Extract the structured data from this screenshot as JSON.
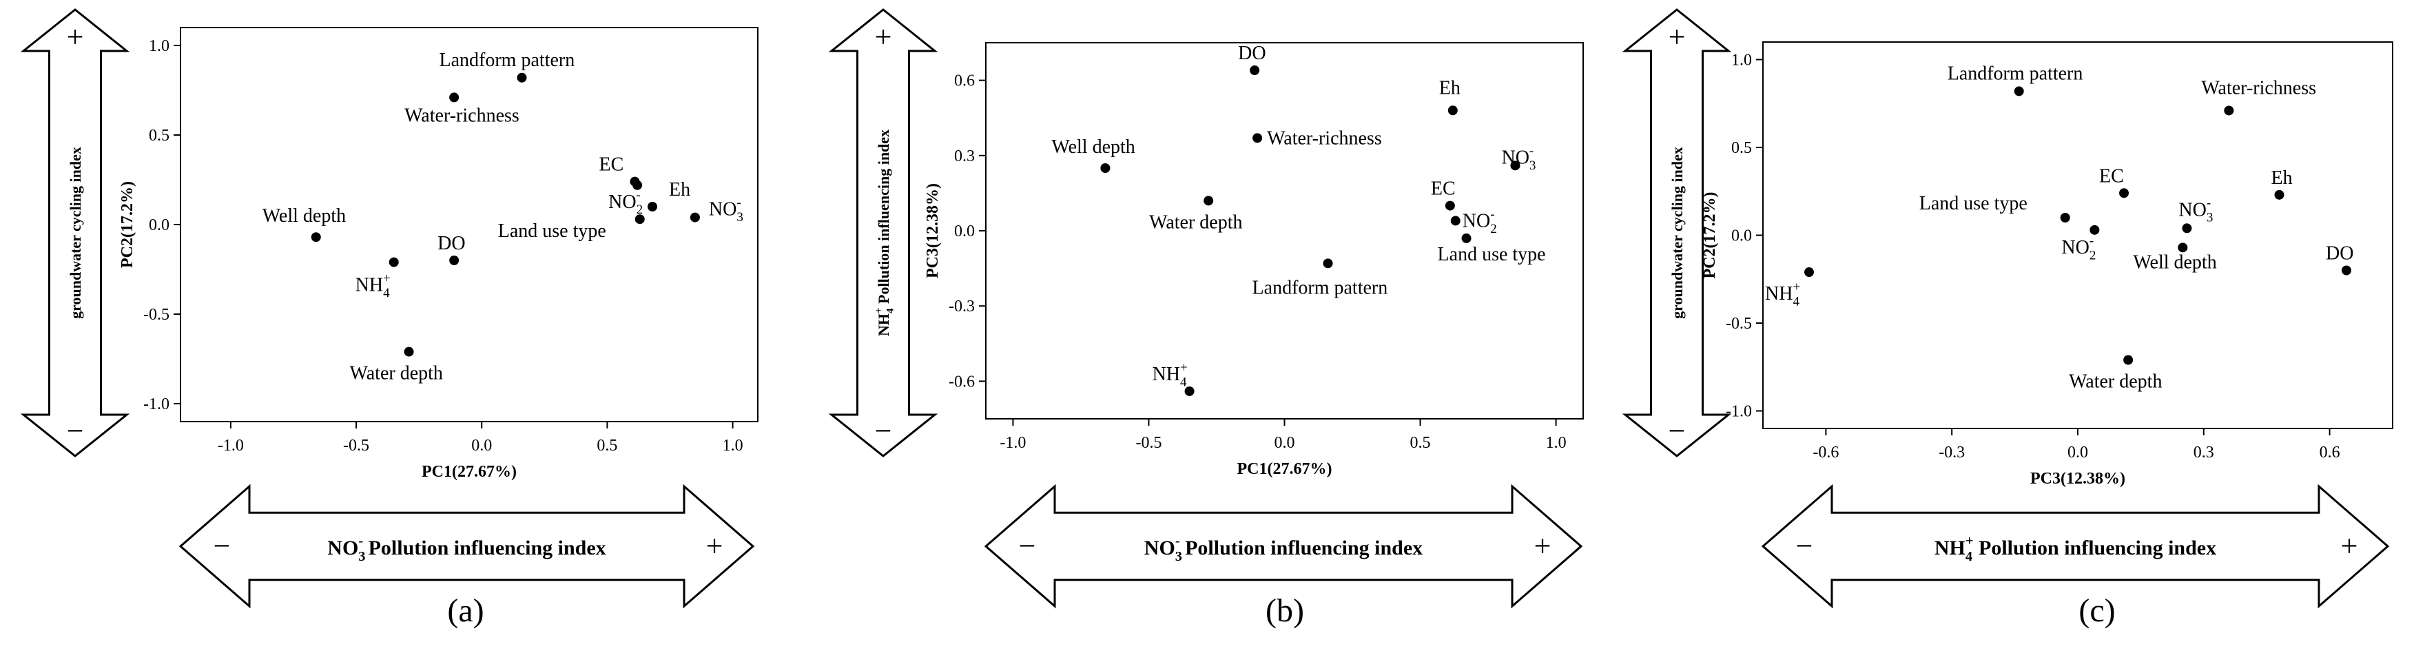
{
  "chart_data": [
    {
      "type": "scatter",
      "panel_label": "(a)",
      "xlabel": "PC1(27.67%)",
      "ylabel": "PC2(17.2%)",
      "xlim": [
        -1.2,
        1.1
      ],
      "ylim": [
        -1.1,
        1.1
      ],
      "xticks": [
        "-1.0",
        "-0.5",
        "0.0",
        "0.5",
        "1.0"
      ],
      "xtick_values": [
        -1.0,
        -0.5,
        0.0,
        0.5,
        1.0
      ],
      "yticks": [
        "-1.0",
        "-0.5",
        "0.0",
        "0.5",
        "1.0"
      ],
      "ytick_values": [
        -1.0,
        -0.5,
        0.0,
        0.5,
        1.0
      ],
      "h_arrow": {
        "label": "NO₃⁻ Pollution influencing index",
        "minus": "−",
        "plus": "+"
      },
      "v_arrow": {
        "label": "groundwater cycling index",
        "minus": "−",
        "plus": "+"
      },
      "points": [
        {
          "label": "Landform pattern",
          "x": 0.16,
          "y": 0.82
        },
        {
          "label": "Water-richness",
          "x": -0.11,
          "y": 0.71
        },
        {
          "label": "EC",
          "x": 0.61,
          "y": 0.24
        },
        {
          "label": "Eh",
          "x": 0.68,
          "y": 0.1
        },
        {
          "label": "Land use type",
          "x": 0.63,
          "y": 0.03
        },
        {
          "label": "NO₃⁻",
          "x": 0.85,
          "y": 0.04
        },
        {
          "label": "NO₂⁻",
          "x": 0.62,
          "y": 0.22
        },
        {
          "label": "Well depth",
          "x": -0.66,
          "y": -0.07
        },
        {
          "label": "DO",
          "x": -0.11,
          "y": -0.2
        },
        {
          "label": "NH₄⁺",
          "x": -0.35,
          "y": -0.21
        },
        {
          "label": "Water depth",
          "x": -0.29,
          "y": -0.71
        }
      ]
    },
    {
      "type": "scatter",
      "panel_label": "(b)",
      "xlabel": "PC1(27.67%)",
      "ylabel": "PC3(12.38%)",
      "xlim": [
        -1.1,
        1.1
      ],
      "ylim": [
        -0.75,
        0.75
      ],
      "xticks": [
        "-1.0",
        "-0.5",
        "0.0",
        "0.5",
        "1.0"
      ],
      "xtick_values": [
        -1.0,
        -0.5,
        0.0,
        0.5,
        1.0
      ],
      "yticks": [
        "-0.6",
        "-0.3",
        "0.0",
        "0.3",
        "0.6"
      ],
      "ytick_values": [
        -0.6,
        -0.3,
        0.0,
        0.3,
        0.6
      ],
      "h_arrow": {
        "label": "NO₃⁻ Pollution influencing index",
        "minus": "−",
        "plus": "+"
      },
      "v_arrow": {
        "label": "NH₄⁺ Pollution influencing index",
        "minus": "−",
        "plus": "+"
      },
      "points": [
        {
          "label": "DO",
          "x": -0.11,
          "y": 0.64
        },
        {
          "label": "Eh",
          "x": 0.62,
          "y": 0.48
        },
        {
          "label": "Well depth",
          "x": -0.66,
          "y": 0.25
        },
        {
          "label": "Water-richness",
          "x": -0.1,
          "y": 0.37
        },
        {
          "label": "NO₃⁻",
          "x": 0.85,
          "y": 0.26
        },
        {
          "label": "Water depth",
          "x": -0.28,
          "y": 0.12
        },
        {
          "label": "EC",
          "x": 0.61,
          "y": 0.1
        },
        {
          "label": "NO₂⁻",
          "x": 0.63,
          "y": 0.04
        },
        {
          "label": "Land use type",
          "x": 0.67,
          "y": -0.03
        },
        {
          "label": "Landform pattern",
          "x": 0.16,
          "y": -0.13
        },
        {
          "label": "NH₄⁺",
          "x": -0.35,
          "y": -0.64
        }
      ]
    },
    {
      "type": "scatter",
      "panel_label": "(c)",
      "xlabel": "PC3(12.38%)",
      "ylabel": "PC2(17.2%)",
      "xlim": [
        -0.75,
        0.75
      ],
      "ylim": [
        -1.1,
        1.1
      ],
      "xticks": [
        "-0.6",
        "-0.3",
        "0.0",
        "0.3",
        "0.6"
      ],
      "xtick_values": [
        -0.6,
        -0.3,
        0.0,
        0.3,
        0.6
      ],
      "yticks": [
        "-1.0",
        "-0.5",
        "0.0",
        "0.5",
        "1.0"
      ],
      "ytick_values": [
        -1.0,
        -0.5,
        0.0,
        0.5,
        1.0
      ],
      "h_arrow": {
        "label": "NH₄⁺ Pollution influencing index",
        "minus": "−",
        "plus": "+"
      },
      "v_arrow": {
        "label": "groundwater cycling index",
        "minus": "−",
        "plus": "+"
      },
      "points": [
        {
          "label": "Landform pattern",
          "x": -0.14,
          "y": 0.82
        },
        {
          "label": "Water-richness",
          "x": 0.36,
          "y": 0.71
        },
        {
          "label": "EC",
          "x": 0.11,
          "y": 0.24
        },
        {
          "label": "Eh",
          "x": 0.48,
          "y": 0.23
        },
        {
          "label": "Land use type",
          "x": -0.03,
          "y": 0.1
        },
        {
          "label": "NO₃⁻",
          "x": 0.26,
          "y": 0.04
        },
        {
          "label": "NO₂⁻",
          "x": 0.04,
          "y": 0.03
        },
        {
          "label": "Well depth",
          "x": 0.25,
          "y": -0.07
        },
        {
          "label": "DO",
          "x": 0.64,
          "y": -0.2
        },
        {
          "label": "NH₄⁺",
          "x": -0.64,
          "y": -0.21
        },
        {
          "label": "Water depth",
          "x": 0.12,
          "y": -0.71
        }
      ]
    }
  ]
}
